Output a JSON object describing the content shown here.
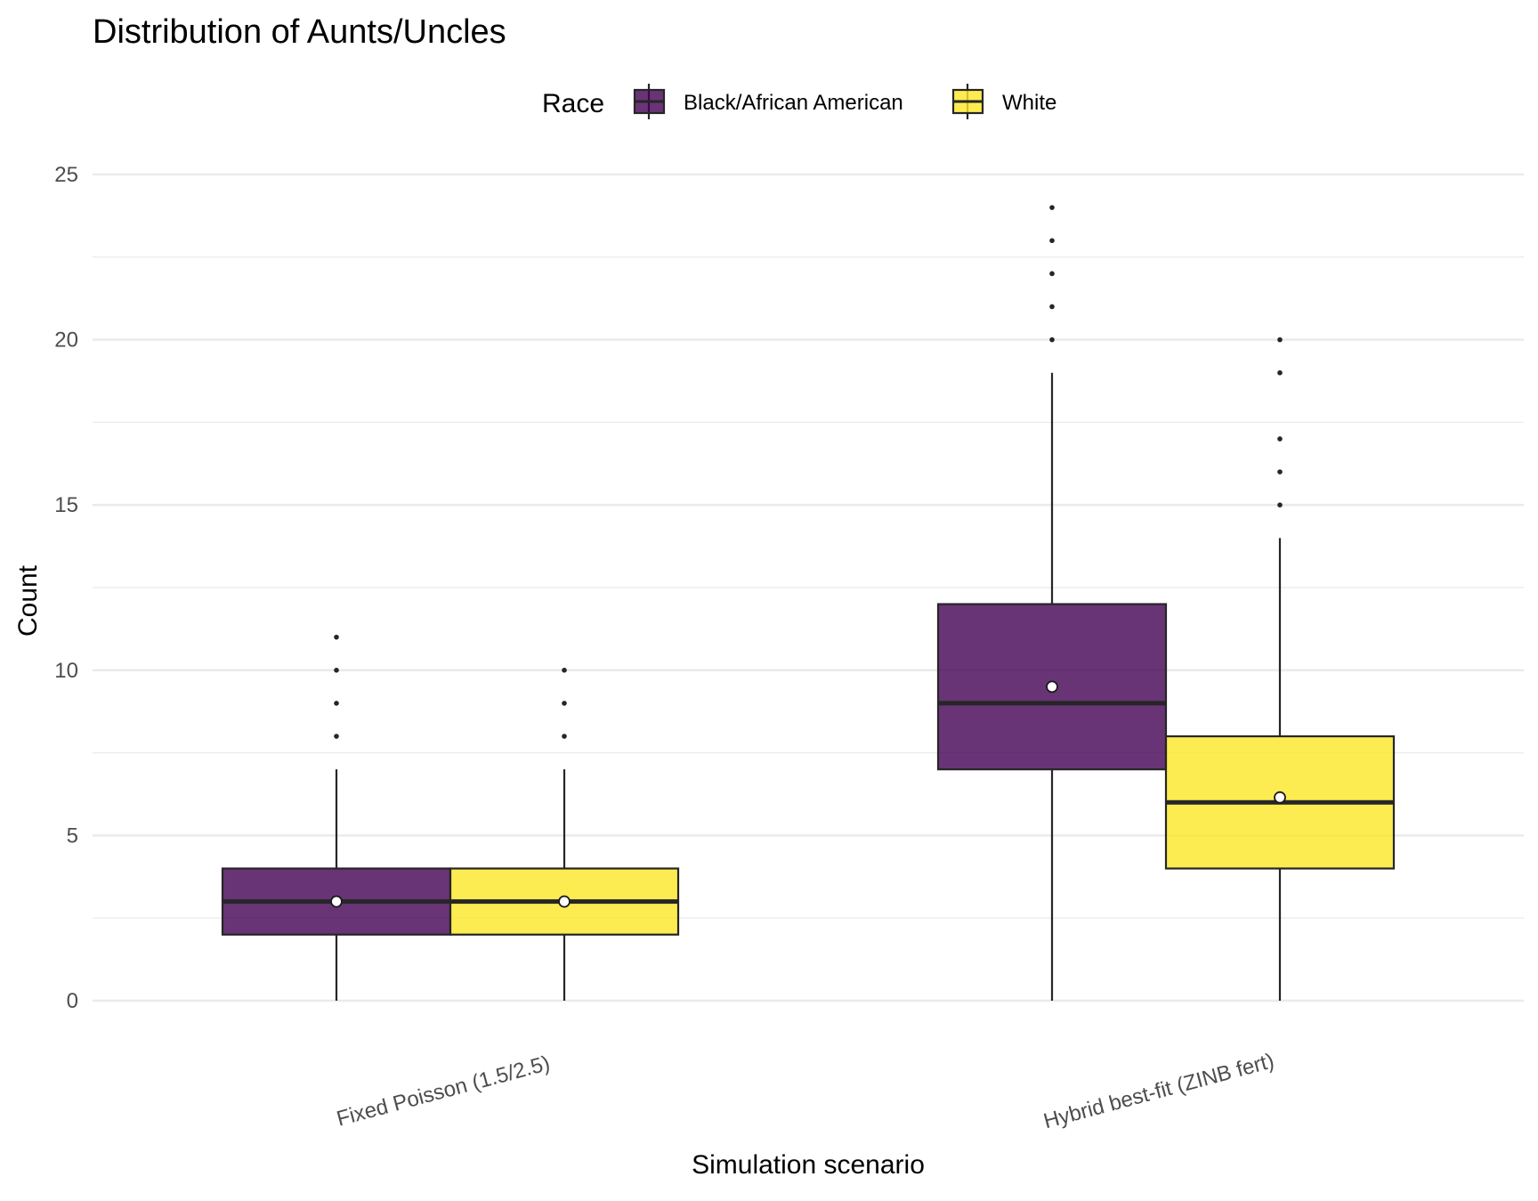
{
  "chart_data": {
    "type": "boxplot",
    "title": "Distribution of Aunts/Uncles",
    "xlabel": "Simulation scenario",
    "ylabel": "Count",
    "ylim": [
      0,
      25
    ],
    "y_ticks": [
      0,
      5,
      10,
      15,
      20,
      25
    ],
    "grid": true,
    "legend": {
      "title": "Race",
      "position": "top",
      "items": [
        {
          "label": "Black/African American",
          "color": "#440154"
        },
        {
          "label": "White",
          "color": "#FDE725"
        }
      ]
    },
    "categories": [
      "Fixed Poisson (1.5/2.5)",
      "Hybrid best-fit (ZINB fert)"
    ],
    "series": [
      {
        "name": "Black/African American",
        "color": "#440154",
        "boxes": [
          {
            "min": 0,
            "q1": 2,
            "median": 3,
            "q3": 4,
            "max": 7,
            "mean": 3.0,
            "outliers": [
              8,
              9,
              10,
              11
            ]
          },
          {
            "min": 0,
            "q1": 7,
            "median": 9,
            "q3": 12,
            "max": 19,
            "mean": 9.5,
            "outliers": [
              20,
              21,
              22,
              23,
              24
            ]
          }
        ]
      },
      {
        "name": "White",
        "color": "#FDE725",
        "boxes": [
          {
            "min": 0,
            "q1": 2,
            "median": 3,
            "q3": 4,
            "max": 7,
            "mean": 3.0,
            "outliers": [
              8,
              9,
              10
            ]
          },
          {
            "min": 0,
            "q1": 4,
            "median": 6,
            "q3": 8,
            "max": 14,
            "mean": 6.15,
            "outliers": [
              15,
              16,
              17,
              19,
              20
            ]
          }
        ]
      }
    ]
  }
}
